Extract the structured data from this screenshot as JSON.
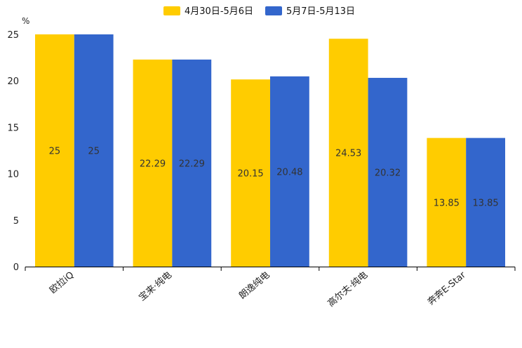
{
  "chart_data": {
    "type": "bar",
    "title": "",
    "unit": "%",
    "xlabel": "",
    "ylabel": "",
    "ylim": [
      0,
      25
    ],
    "yticks": [
      0,
      5,
      10,
      15,
      20,
      25
    ],
    "grid": false,
    "legend_position": "top-center",
    "categories": [
      "欧拉iQ",
      "宝来·纯电",
      "朗逸纯电",
      "高尔夫·纯电",
      "奔奔E-Star"
    ],
    "series": [
      {
        "name": "4月30日-5月6日",
        "color": "#FFCC00",
        "values": [
          25,
          22.29,
          20.15,
          24.53,
          13.85
        ]
      },
      {
        "name": "5月7日-5月13日",
        "color": "#3366CC",
        "values": [
          25,
          22.29,
          20.48,
          20.32,
          13.85
        ]
      }
    ]
  }
}
